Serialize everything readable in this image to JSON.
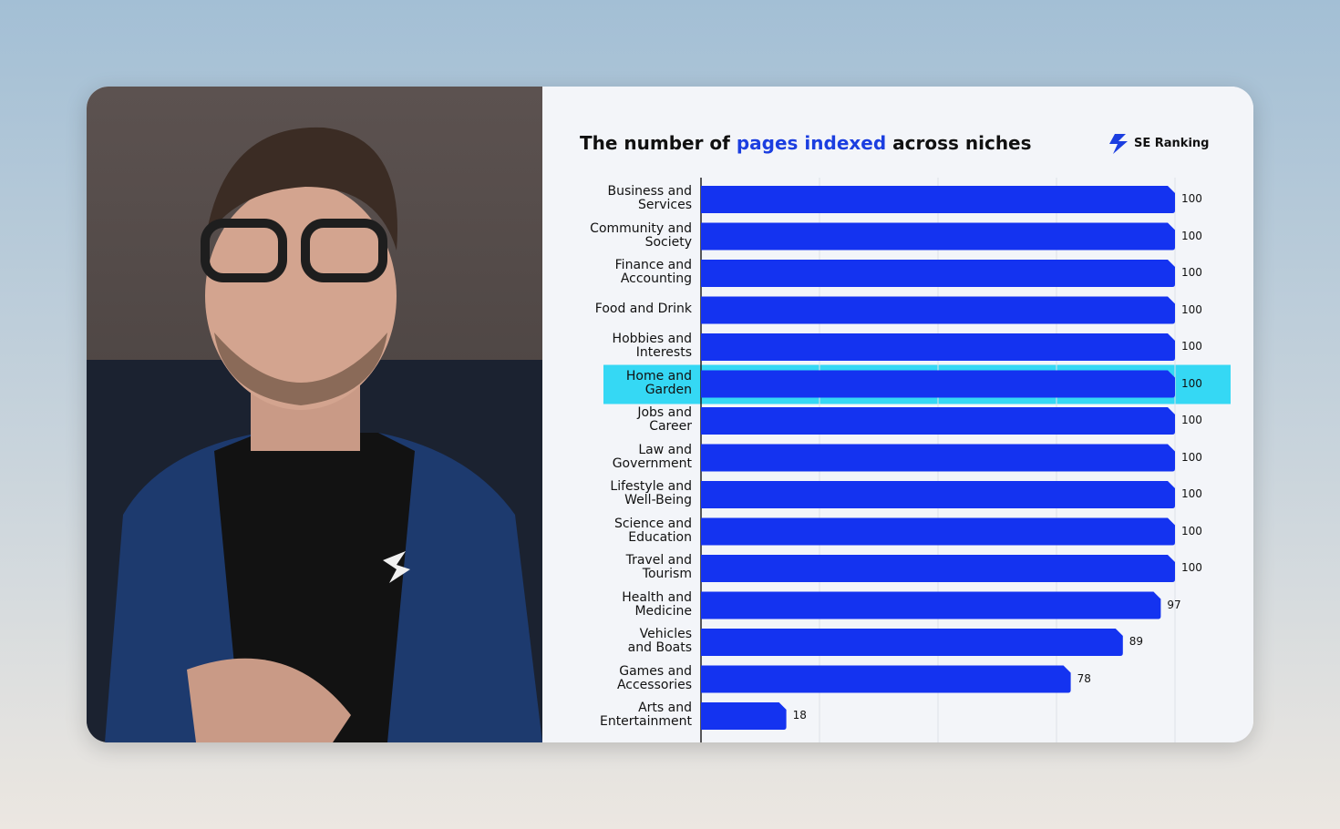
{
  "brand": "SE Ranking",
  "chart_data": {
    "type": "barh",
    "title_parts": [
      "The number of",
      "pages indexed",
      "across niches"
    ],
    "categories": [
      "Business and\nServices",
      "Community and\nSociety",
      "Finance and\nAccounting",
      "Food and Drink",
      "Hobbies and\nInterests",
      "Home and\nGarden",
      "Jobs and\nCareer",
      "Law and\nGovernment",
      "Lifestyle and\nWell-Being",
      "Science and\nEducation",
      "Travel and\nTourism",
      "Health and\nMedicine",
      "Vehicles\nand Boats",
      "Games and\nAccessories",
      "Arts and\nEntertainment"
    ],
    "values": [
      100,
      100,
      100,
      100,
      100,
      100,
      100,
      100,
      100,
      100,
      100,
      97,
      89,
      78,
      18
    ],
    "color": "#1433f0",
    "highlight_index": 5,
    "highlight_color": "#35d8f4",
    "xlim": [
      0,
      100
    ],
    "xticks": [
      0,
      25,
      50,
      75,
      100
    ],
    "tick_labels": false,
    "grid": true
  }
}
